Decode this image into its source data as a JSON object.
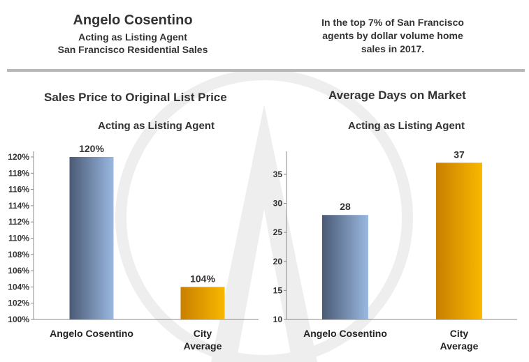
{
  "header": {
    "agent_name": "Angelo Cosentino",
    "role": "Acting as Listing Agent",
    "market": "San Francisco Residential Sales",
    "rank_line1": "In the top 7% of San Francisco",
    "rank_line2": "agents by dollar volume home",
    "rank_line3": "sales in 2017."
  },
  "colors": {
    "agent_bar_dark": "#4a5a75",
    "agent_bar_light": "#9ab8e0",
    "city_bar_dark": "#c87f00",
    "city_bar_light": "#f9b800"
  },
  "chart_data": [
    {
      "type": "bar",
      "title": "Sales Price to Original List Price",
      "subtitle": "Acting as Listing Agent",
      "categories": [
        [
          "Angelo Cosentino"
        ],
        [
          "City",
          "Average"
        ]
      ],
      "values": [
        120,
        104
      ],
      "data_labels": [
        "120%",
        "104%"
      ],
      "ylim": [
        100,
        120
      ],
      "yticks": [
        100,
        102,
        104,
        106,
        108,
        110,
        112,
        114,
        116,
        118,
        120
      ],
      "ytick_labels": [
        "100%",
        "102%",
        "104%",
        "106%",
        "108%",
        "110%",
        "112%",
        "114%",
        "116%",
        "118%",
        "120%"
      ],
      "grid": false,
      "legend": "none"
    },
    {
      "type": "bar",
      "title": "Average Days on Market",
      "subtitle": "Acting as Listing Agent",
      "categories": [
        [
          "Angelo Cosentino"
        ],
        [
          "City",
          "Average"
        ]
      ],
      "values": [
        28,
        37
      ],
      "data_labels": [
        "28",
        "37"
      ],
      "ylim": [
        10,
        38
      ],
      "yticks": [
        10,
        15,
        20,
        25,
        30,
        35
      ],
      "ytick_labels": [
        "10",
        "15",
        "20",
        "25",
        "30",
        "35"
      ],
      "grid": false,
      "legend": "none"
    }
  ]
}
